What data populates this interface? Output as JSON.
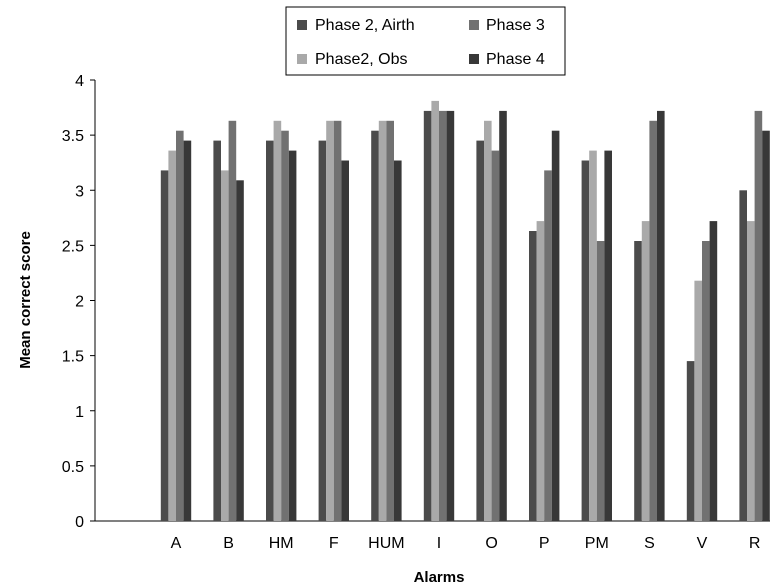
{
  "chart_data": {
    "type": "bar",
    "xlabel": "Alarms",
    "ylabel": "Mean correct score",
    "ylim": [
      0,
      4
    ],
    "yticks": [
      "0",
      "0.5",
      "1",
      "1.5",
      "2",
      "2.5",
      "3",
      "3.5",
      "4"
    ],
    "grid": false,
    "legend_position": "top",
    "categories": [
      "A",
      "B",
      "HM",
      "F",
      "HUM",
      "I",
      "O",
      "P",
      "PM",
      "S",
      "V",
      "R"
    ],
    "series": [
      {
        "name": "Phase 2, Airth",
        "color": "#4b4b4b",
        "values": [
          3.18,
          3.45,
          3.45,
          3.45,
          3.54,
          3.72,
          3.45,
          2.63,
          3.27,
          2.54,
          1.45,
          3.0
        ]
      },
      {
        "name": "Phase2, Obs",
        "color": "#a9a9a9",
        "values": [
          3.36,
          3.18,
          3.63,
          3.63,
          3.63,
          3.81,
          3.63,
          2.72,
          3.36,
          2.72,
          2.18,
          2.72
        ]
      },
      {
        "name": "Phase 3",
        "color": "#717171",
        "values": [
          3.54,
          3.63,
          3.54,
          3.63,
          3.63,
          3.72,
          3.36,
          3.18,
          2.54,
          3.63,
          2.54,
          3.72
        ]
      },
      {
        "name": "Phase 4",
        "color": "#383838",
        "values": [
          3.45,
          3.09,
          3.36,
          3.27,
          3.27,
          3.72,
          3.72,
          3.54,
          3.36,
          3.72,
          2.72,
          3.54
        ]
      }
    ]
  }
}
